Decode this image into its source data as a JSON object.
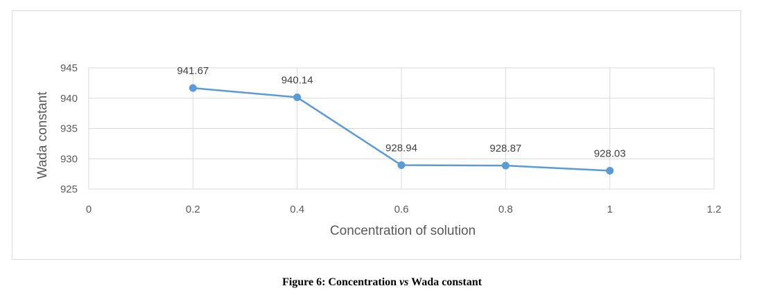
{
  "chart_data": {
    "type": "line",
    "xlabel": "Concentration of solution",
    "ylabel": "Wada constant",
    "xlim": [
      0,
      1.2
    ],
    "ylim": [
      925,
      945
    ],
    "x_ticks": [
      "0",
      "0.2",
      "0.4",
      "0.6",
      "0.8",
      "1",
      "1.2"
    ],
    "y_ticks": [
      "925",
      "930",
      "935",
      "940",
      "945"
    ],
    "grid": true,
    "legend": "none",
    "series": [
      {
        "x": [
          0.2,
          0.4,
          0.6,
          0.8,
          1
        ],
        "values": [
          941.67,
          940.14,
          928.94,
          928.87,
          928.03
        ],
        "labels": [
          "941.67",
          "940.14",
          "928.94",
          "928.87",
          "928.03"
        ],
        "color": "#5b9bd5"
      }
    ]
  },
  "caption": {
    "prefix": "Figure 6: Concentration ",
    "italic": "vs",
    "suffix": " Wada constant"
  }
}
